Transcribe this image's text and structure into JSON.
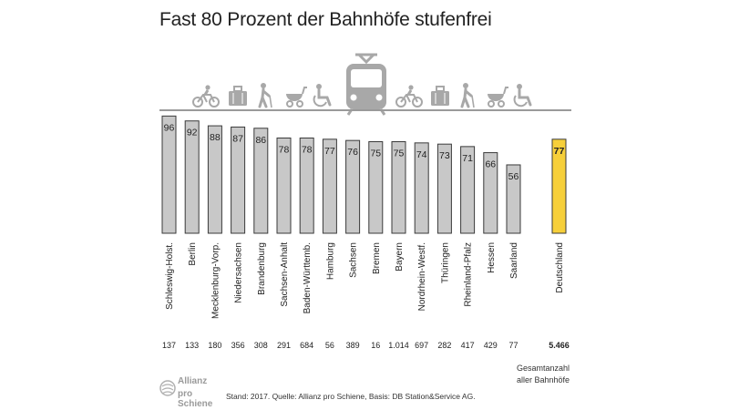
{
  "title": "Fast 80 Prozent der Bahnhöfe stufenfrei",
  "chart_data": {
    "type": "bar",
    "title": "Fast 80 Prozent der Bahnhöfe stufenfrei",
    "categories": [
      "Schleswig-Holst.",
      "Berlin",
      "Mecklenburg-Vorp.",
      "Niedersachsen",
      "Brandenburg",
      "Sachsen-Anhalt",
      "Baden-Württemb.",
      "Hamburg",
      "Sachsen",
      "Bremen",
      "Bayern",
      "Nordrhein-Westf.",
      "Thüringen",
      "Rheinland-Pfalz",
      "Hessen",
      "Saarland",
      "Deutschland"
    ],
    "values": [
      96,
      92,
      88,
      87,
      86,
      78,
      78,
      77,
      76,
      75,
      75,
      74,
      73,
      71,
      66,
      56,
      77
    ],
    "value_labels": [
      "96",
      "92",
      "88",
      "87",
      "86",
      "78",
      "78",
      "77",
      "76",
      "75",
      "75",
      "74",
      "73",
      "71",
      "66",
      "56",
      "77"
    ],
    "station_counts": [
      "137",
      "133",
      "180",
      "356",
      "308",
      "291",
      "684",
      "56",
      "389",
      "16",
      "1.014",
      "697",
      "282",
      "417",
      "429",
      "77",
      "5.466"
    ],
    "ylim": [
      0,
      100
    ],
    "grid": false,
    "bar_color": "#c8c8c8",
    "highlight_color": "#f6cf3a",
    "highlight_category": "Deutschland",
    "total_label_line1": "Gesamtanzahl",
    "total_label_line2": "aller Bahnhöfe"
  },
  "icons": [
    "bicycle-icon",
    "luggage-icon",
    "senior-walking-icon",
    "stroller-icon",
    "wheelchair-icon",
    "train-icon",
    "bicycle-icon",
    "luggage-icon",
    "senior-walking-icon",
    "stroller-icon",
    "wheelchair-icon"
  ],
  "footer": {
    "brand_line1": "Allianz",
    "brand_line2": "pro Schiene",
    "source": "Stand: 2017. Quelle: Allianz pro Schiene, Basis: DB Station&Service AG."
  }
}
